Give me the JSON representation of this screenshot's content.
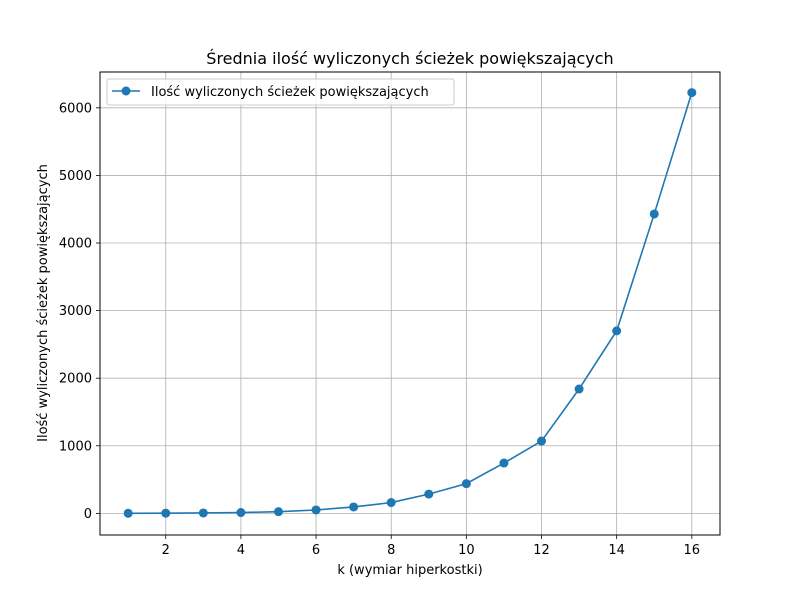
{
  "chart_data": {
    "type": "line",
    "title": "Średnia ilość wyliczonych ścieżek powiększających",
    "xlabel": "k (wymiar hiperkostki)",
    "ylabel": "Ilość wyliczonych ścieżek powiększających",
    "xlim": [
      0.25,
      16.75
    ],
    "ylim": [
      -320,
      6530
    ],
    "xticks": [
      2,
      4,
      6,
      8,
      10,
      12,
      14,
      16
    ],
    "yticks": [
      0,
      1000,
      2000,
      3000,
      4000,
      5000,
      6000
    ],
    "grid": true,
    "legend_position": "top-left",
    "series": [
      {
        "name": "Ilość wyliczonych ścieżek powiększających",
        "color": "#1f77b4",
        "x": [
          1,
          2,
          3,
          4,
          5,
          6,
          7,
          8,
          9,
          10,
          11,
          12,
          13,
          14,
          15,
          16
        ],
        "y": [
          1,
          3,
          6,
          12,
          25,
          50,
          95,
          160,
          285,
          440,
          745,
          1070,
          1840,
          2700,
          4430,
          6225
        ]
      }
    ]
  }
}
